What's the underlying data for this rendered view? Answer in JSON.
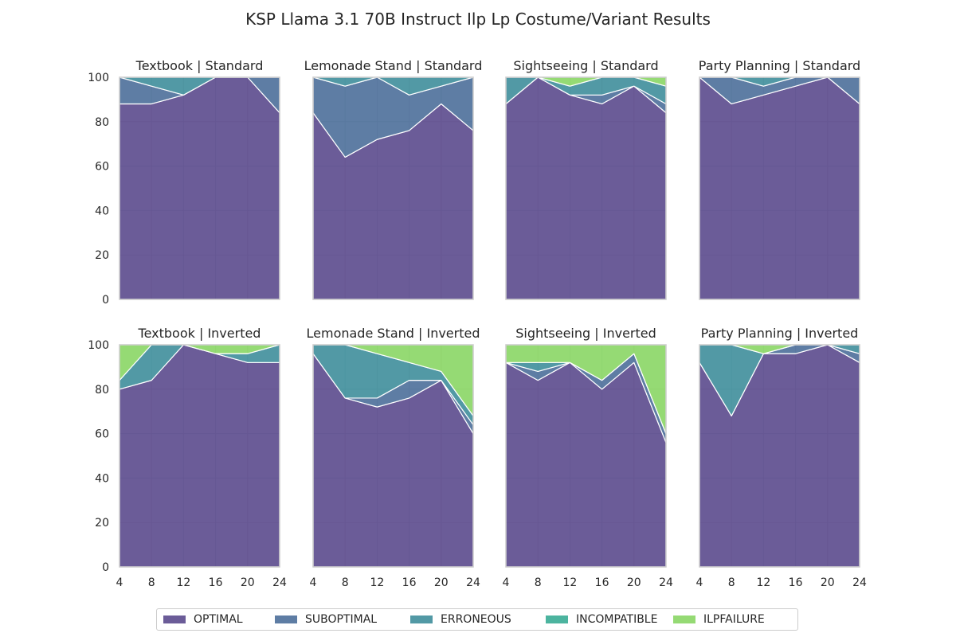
{
  "figure_title": "KSP Llama 3.1 70B Instruct Ilp Lp Costume/Variant Results",
  "colors": {
    "OPTIMAL": "#46337e",
    "SUBOPTIMAL": "#365c8d",
    "ERRONEOUS": "#277f8e",
    "INCOMPATIBLE": "#1fa187",
    "ILPFAILURE": "#7ad151"
  },
  "legend": [
    "OPTIMAL",
    "SUBOPTIMAL",
    "ERRONEOUS",
    "INCOMPATIBLE",
    "ILPFAILURE"
  ],
  "chart_data": [
    {
      "type": "area",
      "title": "Textbook | Standard",
      "x": [
        4,
        8,
        12,
        16,
        20,
        24
      ],
      "ylim": [
        0,
        100
      ],
      "series": [
        {
          "name": "OPTIMAL",
          "values": [
            88,
            88,
            92,
            100,
            100,
            84
          ]
        },
        {
          "name": "SUBOPTIMAL",
          "values": [
            12,
            8,
            0,
            0,
            0,
            16
          ]
        },
        {
          "name": "ERRONEOUS",
          "values": [
            0,
            4,
            8,
            0,
            0,
            0
          ]
        },
        {
          "name": "INCOMPATIBLE",
          "values": [
            0,
            0,
            0,
            0,
            0,
            0
          ]
        },
        {
          "name": "ILPFAILURE",
          "values": [
            0,
            0,
            0,
            0,
            0,
            0
          ]
        }
      ]
    },
    {
      "type": "area",
      "title": "Lemonade Stand | Standard",
      "x": [
        4,
        8,
        12,
        16,
        20,
        24
      ],
      "ylim": [
        0,
        100
      ],
      "series": [
        {
          "name": "OPTIMAL",
          "values": [
            84,
            64,
            72,
            76,
            88,
            76
          ]
        },
        {
          "name": "SUBOPTIMAL",
          "values": [
            16,
            32,
            28,
            16,
            8,
            24
          ]
        },
        {
          "name": "ERRONEOUS",
          "values": [
            0,
            4,
            0,
            8,
            4,
            0
          ]
        },
        {
          "name": "INCOMPATIBLE",
          "values": [
            0,
            0,
            0,
            0,
            0,
            0
          ]
        },
        {
          "name": "ILPFAILURE",
          "values": [
            0,
            0,
            0,
            0,
            0,
            0
          ]
        }
      ]
    },
    {
      "type": "area",
      "title": "Sightseeing | Standard",
      "x": [
        4,
        8,
        12,
        16,
        20,
        24
      ],
      "ylim": [
        0,
        100
      ],
      "series": [
        {
          "name": "OPTIMAL",
          "values": [
            88,
            100,
            92,
            88,
            96,
            84
          ]
        },
        {
          "name": "SUBOPTIMAL",
          "values": [
            0,
            0,
            0,
            4,
            0,
            4
          ]
        },
        {
          "name": "ERRONEOUS",
          "values": [
            12,
            0,
            4,
            8,
            4,
            8
          ]
        },
        {
          "name": "INCOMPATIBLE",
          "values": [
            0,
            0,
            0,
            0,
            0,
            0
          ]
        },
        {
          "name": "ILPFAILURE",
          "values": [
            0,
            0,
            4,
            0,
            0,
            4
          ]
        }
      ]
    },
    {
      "type": "area",
      "title": "Party Planning | Standard",
      "x": [
        4,
        8,
        12,
        16,
        20,
        24
      ],
      "ylim": [
        0,
        100
      ],
      "series": [
        {
          "name": "OPTIMAL",
          "values": [
            100,
            88,
            92,
            96,
            100,
            88
          ]
        },
        {
          "name": "SUBOPTIMAL",
          "values": [
            0,
            12,
            4,
            4,
            0,
            12
          ]
        },
        {
          "name": "ERRONEOUS",
          "values": [
            0,
            0,
            4,
            0,
            0,
            0
          ]
        },
        {
          "name": "INCOMPATIBLE",
          "values": [
            0,
            0,
            0,
            0,
            0,
            0
          ]
        },
        {
          "name": "ILPFAILURE",
          "values": [
            0,
            0,
            0,
            0,
            0,
            0
          ]
        }
      ]
    },
    {
      "type": "area",
      "title": "Textbook | Inverted",
      "x": [
        4,
        8,
        12,
        16,
        20,
        24
      ],
      "ylim": [
        0,
        100
      ],
      "series": [
        {
          "name": "OPTIMAL",
          "values": [
            80,
            84,
            100,
            96,
            92,
            92
          ]
        },
        {
          "name": "SUBOPTIMAL",
          "values": [
            0,
            0,
            0,
            0,
            0,
            0
          ]
        },
        {
          "name": "ERRONEOUS",
          "values": [
            4,
            16,
            0,
            0,
            4,
            8
          ]
        },
        {
          "name": "INCOMPATIBLE",
          "values": [
            0,
            0,
            0,
            0,
            0,
            0
          ]
        },
        {
          "name": "ILPFAILURE",
          "values": [
            16,
            0,
            0,
            4,
            4,
            0
          ]
        }
      ]
    },
    {
      "type": "area",
      "title": "Lemonade Stand | Inverted",
      "x": [
        4,
        8,
        12,
        16,
        20,
        24
      ],
      "ylim": [
        0,
        100
      ],
      "series": [
        {
          "name": "OPTIMAL",
          "values": [
            96,
            76,
            72,
            76,
            84,
            60
          ]
        },
        {
          "name": "SUBOPTIMAL",
          "values": [
            0,
            0,
            4,
            8,
            0,
            4
          ]
        },
        {
          "name": "ERRONEOUS",
          "values": [
            4,
            24,
            20,
            8,
            4,
            4
          ]
        },
        {
          "name": "INCOMPATIBLE",
          "values": [
            0,
            0,
            0,
            0,
            0,
            0
          ]
        },
        {
          "name": "ILPFAILURE",
          "values": [
            0,
            0,
            4,
            8,
            12,
            32
          ]
        }
      ]
    },
    {
      "type": "area",
      "title": "Sightseeing | Inverted",
      "x": [
        4,
        8,
        12,
        16,
        20,
        24
      ],
      "ylim": [
        0,
        100
      ],
      "series": [
        {
          "name": "OPTIMAL",
          "values": [
            92,
            84,
            92,
            80,
            92,
            56
          ]
        },
        {
          "name": "SUBOPTIMAL",
          "values": [
            0,
            4,
            0,
            4,
            4,
            4
          ]
        },
        {
          "name": "ERRONEOUS",
          "values": [
            0,
            4,
            0,
            0,
            0,
            0
          ]
        },
        {
          "name": "INCOMPATIBLE",
          "values": [
            0,
            0,
            0,
            0,
            0,
            0
          ]
        },
        {
          "name": "ILPFAILURE",
          "values": [
            8,
            8,
            8,
            16,
            4,
            40
          ]
        }
      ]
    },
    {
      "type": "area",
      "title": "Party Planning | Inverted",
      "x": [
        4,
        8,
        12,
        16,
        20,
        24
      ],
      "ylim": [
        0,
        100
      ],
      "series": [
        {
          "name": "OPTIMAL",
          "values": [
            92,
            68,
            96,
            96,
            100,
            92
          ]
        },
        {
          "name": "SUBOPTIMAL",
          "values": [
            0,
            0,
            0,
            4,
            0,
            4
          ]
        },
        {
          "name": "ERRONEOUS",
          "values": [
            8,
            32,
            0,
            0,
            0,
            4
          ]
        },
        {
          "name": "INCOMPATIBLE",
          "values": [
            0,
            0,
            0,
            0,
            0,
            0
          ]
        },
        {
          "name": "ILPFAILURE",
          "values": [
            0,
            0,
            4,
            0,
            0,
            0
          ]
        }
      ]
    }
  ],
  "x_ticks": [
    4,
    8,
    12,
    16,
    20,
    24
  ],
  "y_ticks": [
    0,
    20,
    40,
    60,
    80,
    100
  ]
}
